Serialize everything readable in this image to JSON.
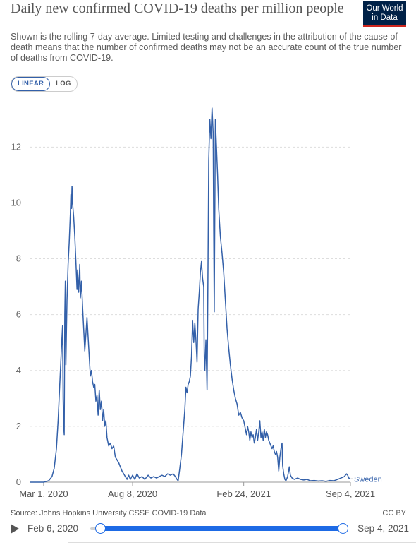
{
  "title": "Daily new confirmed COVID-19 deaths per million people",
  "subtitle": "Shown is the rolling 7-day average. Limited testing and challenges in the attribution of the cause of death means that the number of confirmed deaths may not be an accurate count of the true number of deaths from COVID-19.",
  "logo": {
    "line1": "Our World",
    "line2": "in Data"
  },
  "scale_toggle": {
    "linear": "LINEAR",
    "log": "LOG",
    "active": "linear"
  },
  "source": "Source: Johns Hopkins University CSSE COVID-19 Data",
  "license": "CC BY",
  "timeline": {
    "start": "Feb 6, 2020",
    "end": "Sep 4, 2021"
  },
  "colors": {
    "series": "#3360a9",
    "grid": "#dddddd",
    "slider": "#1d6ae5",
    "logo_bg": "#002147",
    "logo_accent": "#ce261e"
  },
  "chart_data": {
    "type": "line",
    "x_ticks": [
      "Mar 1, 2020",
      "Aug 8, 2020",
      "Feb 24, 2021",
      "Sep 4, 2021"
    ],
    "y_ticks": [
      "0",
      "2",
      "4",
      "6",
      "8",
      "10",
      "12"
    ],
    "ylim": [
      0,
      13.5
    ],
    "xlim": [
      "2020-02-06",
      "2021-09-04"
    ],
    "grid": "horizontal-dashed",
    "series": [
      {
        "name": "Sweden",
        "points": [
          [
            "2020-02-06",
            0
          ],
          [
            "2020-03-01",
            0
          ],
          [
            "2020-03-10",
            0.05
          ],
          [
            "2020-03-16",
            0.2
          ],
          [
            "2020-03-20",
            0.5
          ],
          [
            "2020-03-24",
            1.2
          ],
          [
            "2020-03-27",
            2.2
          ],
          [
            "2020-03-30",
            3.5
          ],
          [
            "2020-04-02",
            4.8
          ],
          [
            "2020-04-04",
            5.6
          ],
          [
            "2020-04-05",
            3.0
          ],
          [
            "2020-04-06",
            2.0
          ],
          [
            "2020-04-07",
            1.7
          ],
          [
            "2020-04-08",
            6.0
          ],
          [
            "2020-04-09",
            7.2
          ],
          [
            "2020-04-10",
            4.2
          ],
          [
            "2020-04-12",
            6.5
          ],
          [
            "2020-04-14",
            7.8
          ],
          [
            "2020-04-16",
            8.6
          ],
          [
            "2020-04-18",
            9.6
          ],
          [
            "2020-04-19",
            10.3
          ],
          [
            "2020-04-20",
            9.8
          ],
          [
            "2020-04-21",
            10.6
          ],
          [
            "2020-04-22",
            10.0
          ],
          [
            "2020-04-24",
            9.5
          ],
          [
            "2020-04-26",
            8.8
          ],
          [
            "2020-04-28",
            7.9
          ],
          [
            "2020-04-30",
            6.9
          ],
          [
            "2020-05-01",
            7.6
          ],
          [
            "2020-05-03",
            6.8
          ],
          [
            "2020-05-05",
            7.8
          ],
          [
            "2020-05-06",
            6.6
          ],
          [
            "2020-05-08",
            7.2
          ],
          [
            "2020-05-10",
            6.3
          ],
          [
            "2020-05-12",
            5.5
          ],
          [
            "2020-05-14",
            4.7
          ],
          [
            "2020-05-16",
            5.3
          ],
          [
            "2020-05-18",
            5.9
          ],
          [
            "2020-05-20",
            5.2
          ],
          [
            "2020-05-22",
            4.5
          ],
          [
            "2020-05-24",
            3.8
          ],
          [
            "2020-05-26",
            4.0
          ],
          [
            "2020-05-28",
            3.6
          ],
          [
            "2020-05-30",
            3.4
          ],
          [
            "2020-06-01",
            3.5
          ],
          [
            "2020-06-03",
            2.9
          ],
          [
            "2020-06-05",
            3.1
          ],
          [
            "2020-06-07",
            2.4
          ],
          [
            "2020-06-09",
            3.3
          ],
          [
            "2020-06-11",
            2.6
          ],
          [
            "2020-06-13",
            2.9
          ],
          [
            "2020-06-15",
            2.2
          ],
          [
            "2020-06-17",
            2.6
          ],
          [
            "2020-06-19",
            2.0
          ],
          [
            "2020-06-21",
            2.2
          ],
          [
            "2020-06-23",
            1.6
          ],
          [
            "2020-06-26",
            1.3
          ],
          [
            "2020-06-29",
            1.4
          ],
          [
            "2020-07-02",
            1.2
          ],
          [
            "2020-07-05",
            1.3
          ],
          [
            "2020-07-08",
            0.9
          ],
          [
            "2020-07-11",
            0.8
          ],
          [
            "2020-07-14",
            0.7
          ],
          [
            "2020-07-17",
            0.55
          ],
          [
            "2020-07-20",
            0.4
          ],
          [
            "2020-07-23",
            0.3
          ],
          [
            "2020-07-26",
            0.2
          ],
          [
            "2020-07-29",
            0.1
          ],
          [
            "2020-08-01",
            0.25
          ],
          [
            "2020-08-04",
            0.1
          ],
          [
            "2020-08-08",
            0.25
          ],
          [
            "2020-08-12",
            0.1
          ],
          [
            "2020-08-16",
            0.3
          ],
          [
            "2020-08-20",
            0.15
          ],
          [
            "2020-08-25",
            0.2
          ],
          [
            "2020-08-30",
            0.1
          ],
          [
            "2020-09-05",
            0.25
          ],
          [
            "2020-09-10",
            0.15
          ],
          [
            "2020-09-15",
            0.2
          ],
          [
            "2020-09-20",
            0.15
          ],
          [
            "2020-09-25",
            0.2
          ],
          [
            "2020-09-30",
            0.25
          ],
          [
            "2020-10-05",
            0.2
          ],
          [
            "2020-10-10",
            0.3
          ],
          [
            "2020-10-15",
            0.25
          ],
          [
            "2020-10-20",
            0.3
          ],
          [
            "2020-10-24",
            0.2
          ],
          [
            "2020-10-27",
            0.1
          ],
          [
            "2020-10-29",
            0.05
          ],
          [
            "2020-11-01",
            0.5
          ],
          [
            "2020-11-04",
            1.0
          ],
          [
            "2020-11-07",
            1.8
          ],
          [
            "2020-11-10",
            2.6
          ],
          [
            "2020-11-12",
            3.4
          ],
          [
            "2020-11-14",
            3.2
          ],
          [
            "2020-11-16",
            3.5
          ],
          [
            "2020-11-18",
            3.6
          ],
          [
            "2020-11-20",
            3.8
          ],
          [
            "2020-11-22",
            4.5
          ],
          [
            "2020-11-24",
            5.8
          ],
          [
            "2020-11-26",
            5.0
          ],
          [
            "2020-11-28",
            5.7
          ],
          [
            "2020-11-30",
            5.1
          ],
          [
            "2020-12-02",
            4.3
          ],
          [
            "2020-12-04",
            6.2
          ],
          [
            "2020-12-06",
            6.8
          ],
          [
            "2020-12-08",
            7.5
          ],
          [
            "2020-12-10",
            7.9
          ],
          [
            "2020-12-12",
            7.3
          ],
          [
            "2020-12-14",
            7.0
          ],
          [
            "2020-12-15",
            4.5
          ],
          [
            "2020-12-16",
            4.0
          ],
          [
            "2020-12-18",
            5.1
          ],
          [
            "2020-12-20",
            3.3
          ],
          [
            "2020-12-21",
            5.5
          ],
          [
            "2020-12-23",
            11.5
          ],
          [
            "2020-12-25",
            13.0
          ],
          [
            "2020-12-27",
            12.3
          ],
          [
            "2020-12-29",
            13.4
          ],
          [
            "2020-12-31",
            12.5
          ],
          [
            "2021-01-01",
            9.0
          ],
          [
            "2021-01-02",
            6.1
          ],
          [
            "2021-01-04",
            13.0
          ],
          [
            "2021-01-06",
            12.0
          ],
          [
            "2021-01-08",
            11.0
          ],
          [
            "2021-01-10",
            9.8
          ],
          [
            "2021-01-13",
            8.8
          ],
          [
            "2021-01-16",
            8.2
          ],
          [
            "2021-01-19",
            7.5
          ],
          [
            "2021-01-22",
            6.5
          ],
          [
            "2021-01-25",
            5.5
          ],
          [
            "2021-01-28",
            4.8
          ],
          [
            "2021-01-31",
            4.2
          ],
          [
            "2021-02-03",
            3.7
          ],
          [
            "2021-02-06",
            3.3
          ],
          [
            "2021-02-09",
            3.0
          ],
          [
            "2021-02-12",
            2.8
          ],
          [
            "2021-02-15",
            2.4
          ],
          [
            "2021-02-18",
            2.5
          ],
          [
            "2021-02-21",
            2.3
          ],
          [
            "2021-02-24",
            2.2
          ],
          [
            "2021-02-27",
            1.9
          ],
          [
            "2021-03-01",
            1.7
          ],
          [
            "2021-03-03",
            2.0
          ],
          [
            "2021-03-05",
            1.8
          ],
          [
            "2021-03-07",
            1.5
          ],
          [
            "2021-03-09",
            1.8
          ],
          [
            "2021-03-11",
            1.6
          ],
          [
            "2021-03-13",
            1.7
          ],
          [
            "2021-03-15",
            1.4
          ],
          [
            "2021-03-17",
            1.6
          ],
          [
            "2021-03-19",
            1.9
          ],
          [
            "2021-03-21",
            1.5
          ],
          [
            "2021-03-23",
            1.8
          ],
          [
            "2021-03-25",
            2.2
          ],
          [
            "2021-03-27",
            1.6
          ],
          [
            "2021-03-29",
            1.8
          ],
          [
            "2021-03-31",
            1.5
          ],
          [
            "2021-04-02",
            1.9
          ],
          [
            "2021-04-04",
            1.6
          ],
          [
            "2021-04-06",
            1.8
          ],
          [
            "2021-04-08",
            1.7
          ],
          [
            "2021-04-10",
            1.5
          ],
          [
            "2021-04-12",
            1.4
          ],
          [
            "2021-04-14",
            1.3
          ],
          [
            "2021-04-16",
            1.2
          ],
          [
            "2021-04-18",
            1.3
          ],
          [
            "2021-04-20",
            1.1
          ],
          [
            "2021-04-22",
            1.0
          ],
          [
            "2021-04-24",
            1.1
          ],
          [
            "2021-04-26",
            0.9
          ],
          [
            "2021-04-28",
            0.4
          ],
          [
            "2021-04-30",
            0.9
          ],
          [
            "2021-05-02",
            1.2
          ],
          [
            "2021-05-04",
            1.4
          ],
          [
            "2021-05-05",
            0.6
          ],
          [
            "2021-05-07",
            0.3
          ],
          [
            "2021-05-09",
            0.1
          ],
          [
            "2021-05-11",
            0.05
          ],
          [
            "2021-05-14",
            0.2
          ],
          [
            "2021-05-17",
            0.55
          ],
          [
            "2021-05-19",
            0.25
          ],
          [
            "2021-05-22",
            0.15
          ],
          [
            "2021-05-26",
            0.1
          ],
          [
            "2021-06-01",
            0.15
          ],
          [
            "2021-06-06",
            0.1
          ],
          [
            "2021-06-12",
            0.08
          ],
          [
            "2021-06-18",
            0.1
          ],
          [
            "2021-06-24",
            0.05
          ],
          [
            "2021-07-01",
            0.06
          ],
          [
            "2021-07-08",
            0.04
          ],
          [
            "2021-07-15",
            0.05
          ],
          [
            "2021-07-22",
            0.03
          ],
          [
            "2021-07-29",
            0.06
          ],
          [
            "2021-08-05",
            0.05
          ],
          [
            "2021-08-12",
            0.1
          ],
          [
            "2021-08-18",
            0.15
          ],
          [
            "2021-08-24",
            0.2
          ],
          [
            "2021-08-28",
            0.3
          ],
          [
            "2021-08-30",
            0.25
          ],
          [
            "2021-09-01",
            0.15
          ],
          [
            "2021-09-04",
            0.12
          ]
        ]
      }
    ]
  }
}
